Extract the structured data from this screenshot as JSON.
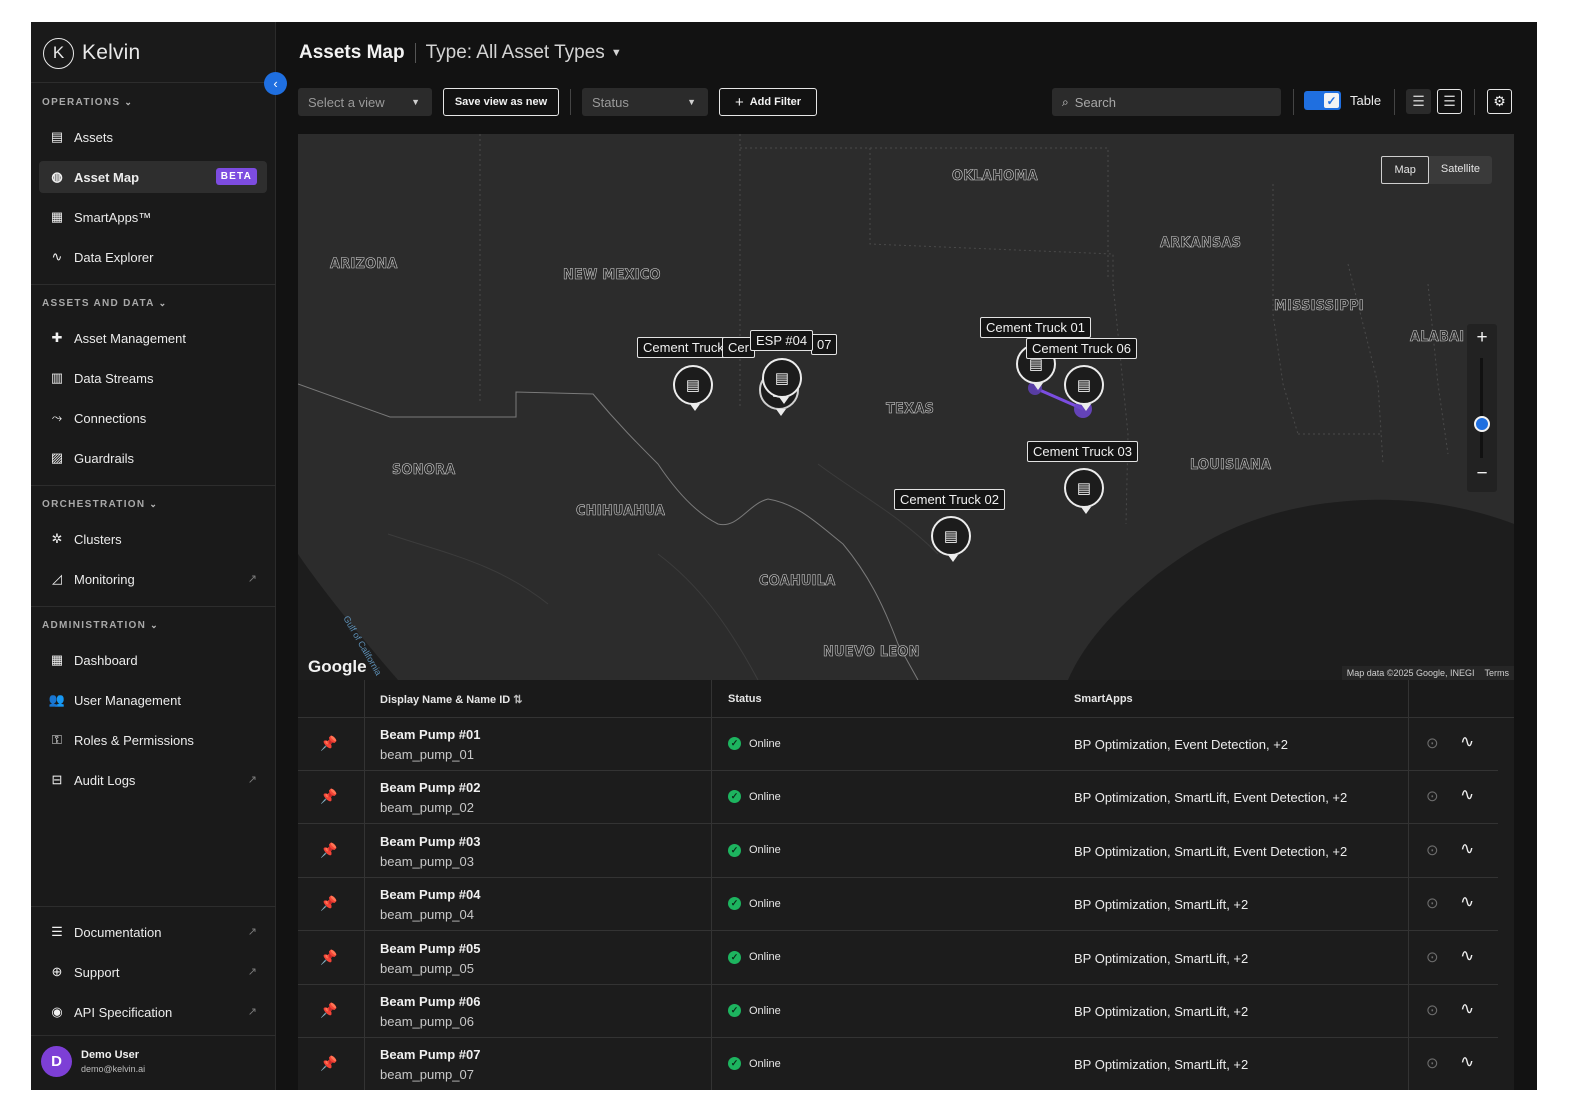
{
  "brand": {
    "name": "Kelvin",
    "mark": "K"
  },
  "sidebar": {
    "collapse_icon": "chevron-left-icon",
    "sections": {
      "operations": "OPERATIONS",
      "assets_data": "ASSETS AND DATA",
      "orchestration": "ORCHESTRATION",
      "administration": "ADMINISTRATION"
    },
    "items": {
      "assets": "Assets",
      "asset_map": "Asset Map",
      "asset_map_badge": "BETA",
      "smartapps": "SmartApps™",
      "data_explorer": "Data Explorer",
      "asset_management": "Asset Management",
      "data_streams": "Data Streams",
      "connections": "Connections",
      "guardrails": "Guardrails",
      "clusters": "Clusters",
      "monitoring": "Monitoring",
      "dashboard": "Dashboard",
      "user_management": "User Management",
      "roles": "Roles & Permissions",
      "audit_logs": "Audit Logs",
      "documentation": "Documentation",
      "support": "Support",
      "api_spec": "API Specification"
    },
    "user": {
      "initial": "D",
      "name": "Demo User",
      "email": "demo@kelvin.ai"
    }
  },
  "header": {
    "title": "Assets Map",
    "type_filter": "Type: All Asset Types"
  },
  "toolbar": {
    "view_select": "Select a view",
    "save_view": "Save view as new",
    "status_select": "Status",
    "add_filter": "Add Filter",
    "search_placeholder": "Search",
    "table_toggle_label": "Table",
    "table_toggle_on": true
  },
  "map": {
    "map_type_options": [
      "Map",
      "Satellite"
    ],
    "map_type_selected": "Map",
    "region_labels": {
      "oklahoma": "OKLAHOMA",
      "arkansas": "ARKANSAS",
      "arizona": "ARIZONA",
      "new_mexico": "NEW MEXICO",
      "mississippi": "MISSISSIPPI",
      "alabama": "ALABAI",
      "texas": "TEXAS",
      "louisiana": "LOUISIANA",
      "sonora": "SONORA",
      "chihuahua": "CHIHUAHUA",
      "coahuila": "COAHUILA",
      "nuevo_leon": "NUEVO LEON",
      "gulf": "Gulf of California"
    },
    "pin_labels": {
      "truck_left": "Cement Truck",
      "truck_mid_clipped": "Cer",
      "esp04": "ESP #04",
      "suffix07": "07",
      "truck01": "Cement Truck 01",
      "truck06": "Cement Truck 06",
      "truck03": "Cement Truck 03",
      "truck02": "Cement Truck 02"
    },
    "google_logo": "Google",
    "attribution": "Map data ©2025 Google, INEGI",
    "terms": "Terms"
  },
  "table": {
    "columns": {
      "name": "Display Name & Name ID",
      "status": "Status",
      "smartapps": "SmartApps"
    },
    "rows": [
      {
        "name": "Beam Pump #01",
        "id": "beam_pump_01",
        "status": "Online",
        "apps": "BP Optimization, Event Detection, +2"
      },
      {
        "name": "Beam Pump #02",
        "id": "beam_pump_02",
        "status": "Online",
        "apps": "BP Optimization, SmartLift, Event Detection, +2"
      },
      {
        "name": "Beam Pump #03",
        "id": "beam_pump_03",
        "status": "Online",
        "apps": "BP Optimization, SmartLift, Event Detection, +2"
      },
      {
        "name": "Beam Pump #04",
        "id": "beam_pump_04",
        "status": "Online",
        "apps": "BP Optimization, SmartLift, +2"
      },
      {
        "name": "Beam Pump #05",
        "id": "beam_pump_05",
        "status": "Online",
        "apps": "BP Optimization, SmartLift, +2"
      },
      {
        "name": "Beam Pump #06",
        "id": "beam_pump_06",
        "status": "Online",
        "apps": "BP Optimization, SmartLift, +2"
      },
      {
        "name": "Beam Pump #07",
        "id": "beam_pump_07",
        "status": "Online",
        "apps": "BP Optimization, SmartLift, +2"
      }
    ]
  },
  "colors": {
    "accent": "#1f6fe0",
    "beta_badge": "#7d4ce0",
    "online": "#1db45f",
    "background": "#121212"
  }
}
